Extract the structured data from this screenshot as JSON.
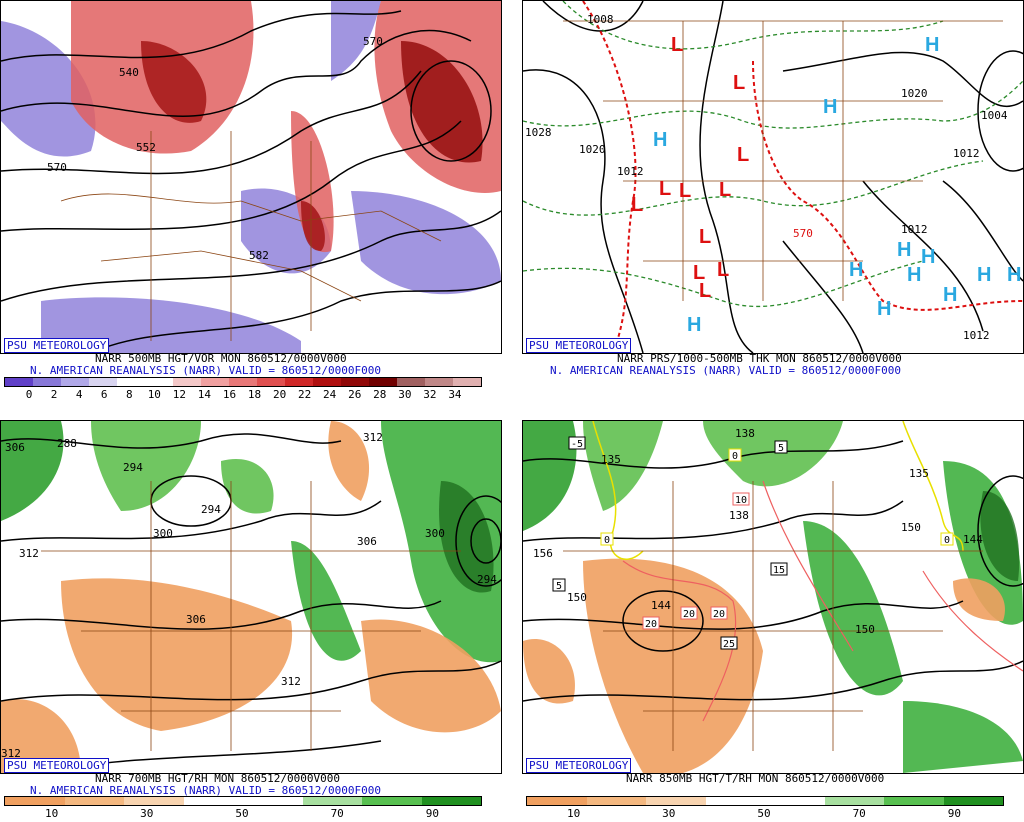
{
  "panels": [
    {
      "badge": "PSU METEOROLOGY",
      "line1": "NARR 500MB HGT/VOR MON 860512/0000V000",
      "line2": "N. AMERICAN REANALYSIS (NARR) VALID = 860512/0000F000",
      "contour_labels": [
        "540",
        "552",
        "570",
        "570",
        "582"
      ],
      "colorbar_colors": [
        "#6040c8",
        "#8878d8",
        "#b0a8e8",
        "#d8d4f0",
        "#ffffff",
        "#ffffff",
        "#f4c8c8",
        "#f0a0a0",
        "#e87878",
        "#e05050",
        "#d02828",
        "#b01010",
        "#900808",
        "#700000",
        "#a06060",
        "#c08888",
        "#e0b0b0"
      ],
      "colorbar_ticks": [
        "0",
        "2",
        "4",
        "6",
        "8",
        "10",
        "12",
        "14",
        "16",
        "18",
        "20",
        "22",
        "24",
        "26",
        "28",
        "30",
        "32",
        "34"
      ]
    },
    {
      "badge": "PSU METEOROLOGY",
      "line1": "NARR PRS/1000-500MB THK MON 860512/0000V000",
      "line2": "N. AMERICAN REANALYSIS (NARR) VALID = 860512/0000F000",
      "contour_labels": [
        "1008",
        "1020",
        "1012",
        "1004",
        "1012",
        "1028",
        "1020",
        "1012",
        "1012",
        "570"
      ],
      "high_symbol": "H",
      "low_symbol": "L"
    },
    {
      "badge": "PSU METEOROLOGY",
      "line1": "NARR 700MB HGT/RH MON 860512/0000V000",
      "line2": "N. AMERICAN REANALYSIS (NARR) VALID = 860512/0000F000",
      "contour_labels": [
        "288",
        "294",
        "294",
        "300",
        "306",
        "312",
        "306",
        "300",
        "312",
        "312",
        "294",
        "306",
        "312"
      ],
      "colorbar_colors": [
        "#f0a060",
        "#f4b880",
        "#f8d4b0",
        "#ffffff",
        "#ffffff",
        "#a8e0a0",
        "#58c050",
        "#209020"
      ],
      "colorbar_ticks": [
        "10",
        "30",
        "50",
        "70",
        "90"
      ]
    },
    {
      "badge": "PSU METEOROLOGY",
      "line1": "NARR 850MB HGT/T/RH MON 860512/0000V000",
      "line2": "",
      "contour_labels": [
        "135",
        "156",
        "150",
        "144",
        "138",
        "135",
        "150",
        "150",
        "144",
        "138"
      ],
      "temp_boxes": [
        "-5",
        "0",
        "0",
        "5",
        "5",
        "10",
        "15",
        "20",
        "20",
        "20",
        "25",
        "0"
      ],
      "colorbar_colors": [
        "#f0a060",
        "#f4b880",
        "#f8d4b0",
        "#ffffff",
        "#ffffff",
        "#a8e0a0",
        "#58c050",
        "#209020"
      ],
      "colorbar_ticks": [
        "10",
        "30",
        "50",
        "70",
        "90"
      ]
    }
  ]
}
